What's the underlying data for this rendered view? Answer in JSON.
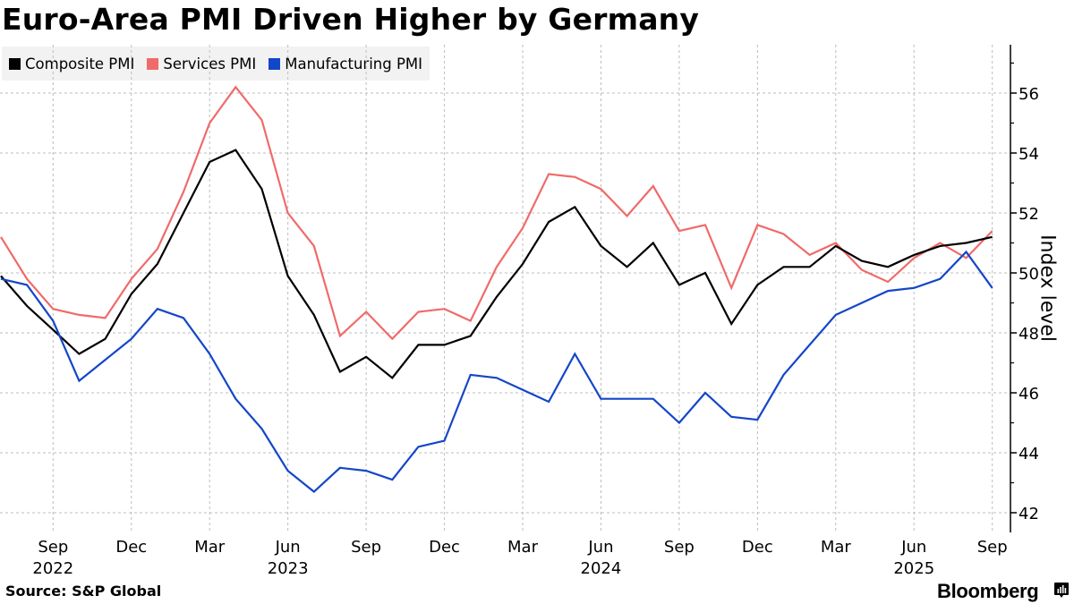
{
  "header": {
    "title": "Euro-Area PMI Driven Higher by Germany"
  },
  "legend": {
    "items": [
      {
        "label": "Composite PMI",
        "color": "#000000"
      },
      {
        "label": "Services PMI",
        "color": "#f06a6a"
      },
      {
        "label": "Manufacturing PMI",
        "color": "#1446c8"
      }
    ]
  },
  "footer": {
    "source": "Source: S&P Global",
    "brand": "Bloomberg",
    "brand_icon": "bloomberg-terminal-icon"
  },
  "chart_data": {
    "type": "line",
    "title": "Euro-Area PMI Driven Higher by Germany",
    "xlabel": "",
    "ylabel": "Index level",
    "ylim": [
      41.5,
      57.5
    ],
    "y_ticks": [
      42,
      44,
      46,
      48,
      50,
      52,
      54,
      56
    ],
    "grid": true,
    "legend_position": "top-left",
    "x": [
      "2022-07",
      "2022-08",
      "2022-09",
      "2022-10",
      "2022-11",
      "2022-12",
      "2023-01",
      "2023-02",
      "2023-03",
      "2023-04",
      "2023-05",
      "2023-06",
      "2023-07",
      "2023-08",
      "2023-09",
      "2023-10",
      "2023-11",
      "2023-12",
      "2024-01",
      "2024-02",
      "2024-03",
      "2024-04",
      "2024-05",
      "2024-06",
      "2024-07",
      "2024-08",
      "2024-09",
      "2024-10",
      "2024-11",
      "2024-12",
      "2025-01",
      "2025-02",
      "2025-03",
      "2025-04",
      "2025-05",
      "2025-06",
      "2025-07",
      "2025-08",
      "2025-09"
    ],
    "x_ticks": [
      {
        "month": "Sep",
        "year": "2022",
        "index": 2
      },
      {
        "month": "Dec",
        "year": "",
        "index": 5
      },
      {
        "month": "Mar",
        "year": "",
        "index": 8
      },
      {
        "month": "Jun",
        "year": "2023",
        "index": 11
      },
      {
        "month": "Sep",
        "year": "",
        "index": 14
      },
      {
        "month": "Dec",
        "year": "",
        "index": 17
      },
      {
        "month": "Mar",
        "year": "",
        "index": 20
      },
      {
        "month": "Jun",
        "year": "2024",
        "index": 23
      },
      {
        "month": "Sep",
        "year": "",
        "index": 26
      },
      {
        "month": "Dec",
        "year": "",
        "index": 29
      },
      {
        "month": "Mar",
        "year": "",
        "index": 32
      },
      {
        "month": "Jun",
        "year": "2025",
        "index": 35
      },
      {
        "month": "Sep",
        "year": "",
        "index": 38
      }
    ],
    "series": [
      {
        "name": "Services PMI",
        "color": "#f06a6a",
        "values": [
          51.2,
          49.8,
          48.8,
          48.6,
          48.5,
          49.8,
          50.8,
          52.7,
          55.0,
          56.2,
          55.1,
          52.0,
          50.9,
          47.9,
          48.7,
          47.8,
          48.7,
          48.8,
          48.4,
          50.2,
          51.5,
          53.3,
          53.2,
          52.8,
          51.9,
          52.9,
          51.4,
          51.6,
          49.5,
          51.6,
          51.3,
          50.6,
          51.0,
          50.1,
          49.7,
          50.5,
          51.0,
          50.5,
          51.4
        ]
      },
      {
        "name": "Composite PMI",
        "color": "#000000",
        "values": [
          49.9,
          48.9,
          48.1,
          47.3,
          47.8,
          49.3,
          50.3,
          52.0,
          53.7,
          54.1,
          52.8,
          49.9,
          48.6,
          46.7,
          47.2,
          46.5,
          47.6,
          47.6,
          47.9,
          49.2,
          50.3,
          51.7,
          52.2,
          50.9,
          50.2,
          51.0,
          49.6,
          50.0,
          48.3,
          49.6,
          50.2,
          50.2,
          50.9,
          50.4,
          50.2,
          50.6,
          50.9,
          51.0,
          51.2
        ]
      },
      {
        "name": "Manufacturing PMI",
        "color": "#1446c8",
        "values": [
          49.8,
          49.6,
          48.4,
          46.4,
          47.1,
          47.8,
          48.8,
          48.5,
          47.3,
          45.8,
          44.8,
          43.4,
          42.7,
          43.5,
          43.4,
          43.1,
          44.2,
          44.4,
          46.6,
          46.5,
          46.1,
          45.7,
          47.3,
          45.8,
          45.8,
          45.8,
          45.0,
          46.0,
          45.2,
          45.1,
          46.6,
          47.6,
          48.6,
          49.0,
          49.4,
          49.5,
          49.8,
          50.7,
          49.5
        ]
      }
    ]
  }
}
